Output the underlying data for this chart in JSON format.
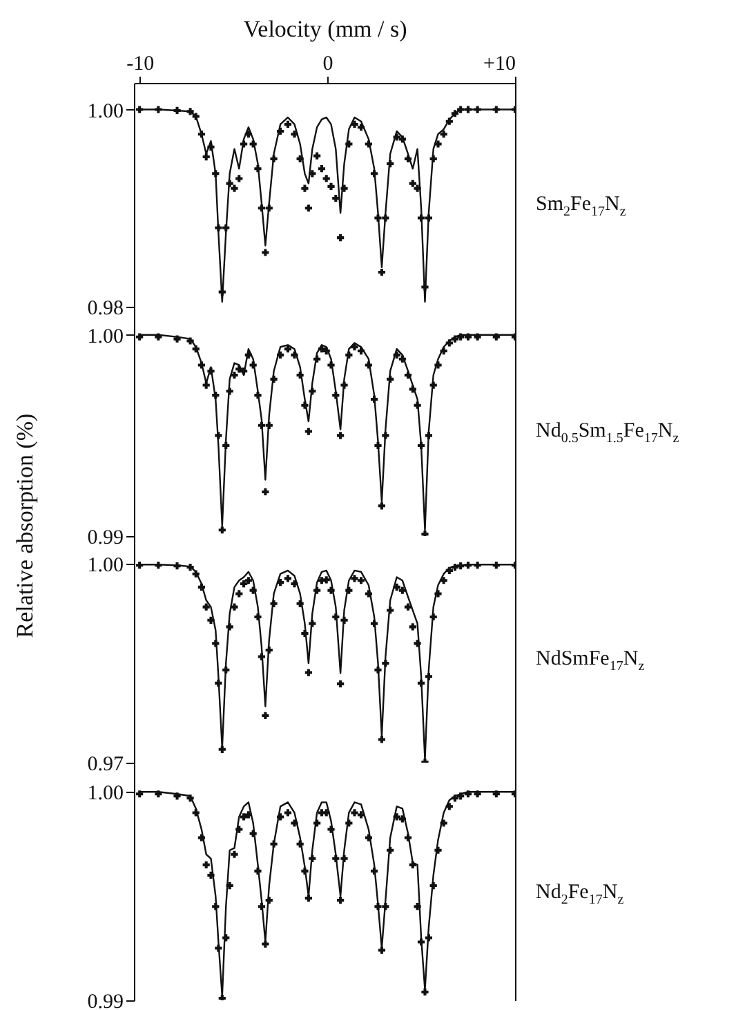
{
  "chart_data": [
    {
      "type": "scatter",
      "xlabel": "Velocity (mm / s)",
      "annotations": [
        "Sm$_{2}$Fe$_{17}$N$_{z}$"
      ],
      "xlim": [
        -10.3,
        10
      ],
      "xticks": [
        -10,
        0,
        {
          "value": 10,
          "label": "+10"
        }
      ],
      "ylim": [
        0.98,
        1.0027
      ],
      "yticks": [
        {
          "value": 1,
          "label": "1.00"
        },
        {
          "value": 0.98,
          "label": "0.98"
        }
      ],
      "x": [
        -10,
        -9,
        -8,
        -7.3,
        -7.0,
        -6.7,
        -6.45,
        -6.2,
        -5.95,
        -5.8,
        -5.6,
        -5.4,
        -5.2,
        -4.95,
        -4.7,
        -4.45,
        -4.2,
        -3.95,
        -3.7,
        -3.5,
        -3.3,
        -3.1,
        -2.85,
        -2.5,
        -2.1,
        -1.75,
        -1.45,
        -1.2,
        -1.0,
        -0.8,
        -0.55,
        -0.3,
        -0.05,
        0.2,
        0.45,
        0.7,
        0.9,
        1.15,
        1.45,
        1.8,
        2.2,
        2.5,
        2.7,
        2.9,
        3.1,
        3.35,
        3.7,
        4.0,
        4.3,
        4.55,
        4.8,
        5.0,
        5.2,
        5.4,
        5.65,
        5.9,
        6.2,
        6.5,
        6.8,
        7.1,
        7.5,
        8,
        9,
        10
      ],
      "series": [
        {
          "marker": "cross",
          "color": "#111111",
          "values": [
            1,
            1,
            0.9999,
            0.9998,
            0.9993,
            0.9975,
            0.9952,
            0.9962,
            0.9935,
            0.988,
            0.9815,
            0.988,
            0.9925,
            0.992,
            0.993,
            0.9965,
            0.9975,
            0.9965,
            0.994,
            0.99,
            0.9855,
            0.99,
            0.995,
            0.9978,
            0.9985,
            0.9975,
            0.995,
            0.992,
            0.99,
            0.9935,
            0.9953,
            0.994,
            0.993,
            0.9922,
            0.991,
            0.987,
            0.992,
            0.9965,
            0.9985,
            0.9982,
            0.9965,
            0.9935,
            0.989,
            0.9835,
            0.989,
            0.9945,
            0.9972,
            0.997,
            0.995,
            0.9925,
            0.992,
            0.989,
            0.982,
            0.989,
            0.995,
            0.9965,
            0.9975,
            0.9988,
            0.9996,
            1,
            1,
            1,
            1,
            1
          ]
        },
        {
          "type": "line",
          "marker": "none",
          "color": "#111111",
          "values": [
            1,
            1,
            0.9999,
            0.9998,
            0.9993,
            0.9975,
            0.9955,
            0.9968,
            0.9935,
            0.9875,
            0.9805,
            0.9875,
            0.9935,
            0.996,
            0.994,
            0.997,
            0.9982,
            0.997,
            0.9945,
            0.9905,
            0.9862,
            0.9905,
            0.9955,
            0.9985,
            0.9992,
            0.9985,
            0.9965,
            0.9935,
            0.9925,
            0.996,
            0.9982,
            0.999,
            0.9992,
            0.9985,
            0.996,
            0.9895,
            0.9945,
            0.998,
            0.9992,
            0.9988,
            0.997,
            0.994,
            0.9895,
            0.984,
            0.9895,
            0.9955,
            0.9978,
            0.9972,
            0.9955,
            0.994,
            0.996,
            0.99,
            0.9805,
            0.9895,
            0.996,
            0.9975,
            0.998,
            0.999,
            0.9996,
            1,
            1,
            1,
            1,
            1
          ]
        }
      ]
    },
    {
      "type": "scatter",
      "ylabel": "Relative absorption (%)",
      "annotations": [
        "Nd$_{0.5}$Sm$_{1.5}$Fe$_{17}$N$_{z}$"
      ],
      "tick_labels": "y",
      "xlim": [
        -10.3,
        10
      ],
      "ylim": [
        0.99,
        1.0014
      ],
      "yticks": [
        {
          "value": 1,
          "label": "1.00"
        },
        {
          "value": 0.99,
          "label": "0.99"
        }
      ],
      "x": [
        -10,
        -9,
        -8,
        -7.3,
        -7.0,
        -6.7,
        -6.45,
        -6.2,
        -5.95,
        -5.8,
        -5.6,
        -5.4,
        -5.2,
        -4.95,
        -4.7,
        -4.45,
        -4.2,
        -3.95,
        -3.7,
        -3.5,
        -3.3,
        -3.1,
        -2.85,
        -2.5,
        -2.1,
        -1.75,
        -1.45,
        -1.2,
        -1.0,
        -0.8,
        -0.55,
        -0.3,
        -0.05,
        0.2,
        0.45,
        0.7,
        0.9,
        1.15,
        1.45,
        1.8,
        2.2,
        2.5,
        2.7,
        2.9,
        3.1,
        3.35,
        3.7,
        4.0,
        4.3,
        4.55,
        4.8,
        5.0,
        5.2,
        5.4,
        5.65,
        5.9,
        6.2,
        6.5,
        6.8,
        7.1,
        7.5,
        8,
        9,
        10
      ],
      "series": [
        {
          "marker": "cross",
          "color": "#111111",
          "values": [
            0.9999,
            0.9999,
            0.9998,
            0.9997,
            0.9993,
            0.9985,
            0.9975,
            0.9982,
            0.997,
            0.995,
            0.9903,
            0.9945,
            0.9972,
            0.998,
            0.9983,
            0.9982,
            0.999,
            0.9985,
            0.997,
            0.9955,
            0.9922,
            0.9955,
            0.9978,
            0.999,
            0.9993,
            0.999,
            0.998,
            0.9965,
            0.9952,
            0.9972,
            0.9988,
            0.9993,
            0.9992,
            0.9985,
            0.997,
            0.995,
            0.9975,
            0.999,
            0.9994,
            0.9992,
            0.9985,
            0.9968,
            0.9945,
            0.9915,
            0.995,
            0.9978,
            0.999,
            0.9988,
            0.998,
            0.9973,
            0.9965,
            0.9945,
            0.9901,
            0.995,
            0.9975,
            0.9985,
            0.9992,
            0.9996,
            0.9998,
            0.9999,
            0.9999,
            0.9999,
            0.9999,
            0.9999
          ]
        },
        {
          "type": "line",
          "marker": "none",
          "color": "#111111",
          "values": [
            1,
            1,
            0.9999,
            0.9998,
            0.9994,
            0.9986,
            0.9976,
            0.9984,
            0.9968,
            0.9945,
            0.9905,
            0.9948,
            0.9978,
            0.9986,
            0.9985,
            0.998,
            0.9993,
            0.9988,
            0.9972,
            0.9958,
            0.9928,
            0.996,
            0.9982,
            0.9994,
            0.9995,
            0.9993,
            0.9984,
            0.9968,
            0.9957,
            0.9976,
            0.9991,
            0.9995,
            0.9994,
            0.9988,
            0.9972,
            0.9953,
            0.9978,
            0.9993,
            0.9996,
            0.9994,
            0.9988,
            0.997,
            0.9947,
            0.9917,
            0.9953,
            0.9982,
            0.9993,
            0.999,
            0.9982,
            0.9975,
            0.9968,
            0.9945,
            0.9903,
            0.9952,
            0.998,
            0.9988,
            0.9994,
            0.9997,
            0.9999,
            1,
            1,
            1,
            1,
            1
          ]
        }
      ]
    },
    {
      "type": "scatter",
      "annotations": [
        "NdSmFe$_{17}$N$_{z}$"
      ],
      "tick_labels": "y",
      "xlim": [
        -10.3,
        10
      ],
      "ylim": [
        0.97,
        1.0042
      ],
      "yticks": [
        {
          "value": 1,
          "label": "1.00"
        },
        {
          "value": 0.97,
          "label": "0.97"
        }
      ],
      "x": [
        -10,
        -9,
        -8,
        -7.3,
        -7.0,
        -6.7,
        -6.45,
        -6.2,
        -5.95,
        -5.8,
        -5.6,
        -5.4,
        -5.2,
        -4.95,
        -4.7,
        -4.45,
        -4.2,
        -3.95,
        -3.7,
        -3.5,
        -3.3,
        -3.1,
        -2.85,
        -2.5,
        -2.1,
        -1.75,
        -1.45,
        -1.2,
        -1.0,
        -0.8,
        -0.55,
        -0.3,
        -0.05,
        0.2,
        0.45,
        0.7,
        0.9,
        1.15,
        1.45,
        1.8,
        2.2,
        2.5,
        2.7,
        2.9,
        3.1,
        3.35,
        3.7,
        4.0,
        4.3,
        4.55,
        4.8,
        5.0,
        5.2,
        5.4,
        5.65,
        5.9,
        6.2,
        6.5,
        6.8,
        7.1,
        7.5,
        8,
        9,
        10
      ],
      "series": [
        {
          "marker": "cross",
          "color": "#111111",
          "values": [
            0.9998,
            0.9998,
            0.9997,
            0.9995,
            0.9985,
            0.9965,
            0.9935,
            0.9915,
            0.988,
            0.982,
            0.972,
            0.984,
            0.9905,
            0.9935,
            0.9955,
            0.997,
            0.9975,
            0.996,
            0.992,
            0.986,
            0.9771,
            0.987,
            0.994,
            0.9972,
            0.9978,
            0.997,
            0.994,
            0.9895,
            0.9836,
            0.991,
            0.996,
            0.9975,
            0.9976,
            0.996,
            0.992,
            0.9819,
            0.9915,
            0.996,
            0.9978,
            0.9975,
            0.9955,
            0.991,
            0.984,
            0.9735,
            0.985,
            0.993,
            0.9965,
            0.996,
            0.9935,
            0.9905,
            0.988,
            0.982,
            0.9701,
            0.983,
            0.992,
            0.9955,
            0.9975,
            0.999,
            0.9995,
            0.9997,
            0.9998,
            0.9998,
            0.9998,
            0.9998
          ]
        },
        {
          "type": "line",
          "marker": "none",
          "color": "#111111",
          "values": [
            0.9999,
            0.9999,
            0.9998,
            0.9996,
            0.9988,
            0.997,
            0.9945,
            0.9935,
            0.99,
            0.983,
            0.9722,
            0.985,
            0.9925,
            0.9965,
            0.9975,
            0.998,
            0.9988,
            0.9975,
            0.9935,
            0.9875,
            0.9785,
            0.9885,
            0.9955,
            0.9985,
            0.999,
            0.9982,
            0.9955,
            0.991,
            0.985,
            0.9925,
            0.9972,
            0.9988,
            0.999,
            0.9975,
            0.9935,
            0.9835,
            0.993,
            0.9975,
            0.999,
            0.9988,
            0.9968,
            0.992,
            0.985,
            0.974,
            0.986,
            0.9945,
            0.998,
            0.9975,
            0.995,
            0.993,
            0.991,
            0.983,
            0.9705,
            0.984,
            0.9935,
            0.9968,
            0.9985,
            0.9994,
            0.9997,
            0.9998,
            0.9999,
            0.9999,
            0.9999,
            0.9999
          ]
        }
      ]
    },
    {
      "type": "scatter",
      "annotations": [
        "Nd$_{2}$Fe$_{17}$N$_{z}$"
      ],
      "tick_labels": "y",
      "xlim": [
        -10.3,
        10
      ],
      "ylim": [
        0.99,
        1.0014
      ],
      "yticks": [
        {
          "value": 1,
          "label": "1.00"
        },
        {
          "value": 0.99,
          "label": "0.99"
        }
      ],
      "x": [
        -10,
        -9,
        -8,
        -7.3,
        -7.0,
        -6.7,
        -6.45,
        -6.2,
        -5.95,
        -5.8,
        -5.6,
        -5.4,
        -5.2,
        -4.95,
        -4.7,
        -4.45,
        -4.2,
        -3.95,
        -3.7,
        -3.5,
        -3.3,
        -3.1,
        -2.85,
        -2.5,
        -2.1,
        -1.75,
        -1.45,
        -1.2,
        -1.0,
        -0.8,
        -0.55,
        -0.3,
        -0.05,
        0.2,
        0.45,
        0.7,
        0.9,
        1.15,
        1.45,
        1.8,
        2.2,
        2.5,
        2.7,
        2.9,
        3.1,
        3.35,
        3.7,
        4.0,
        4.3,
        4.55,
        4.8,
        5.0,
        5.2,
        5.4,
        5.65,
        5.9,
        6.2,
        6.5,
        6.8,
        7.1,
        7.5,
        8,
        9,
        10
      ],
      "series": [
        {
          "marker": "cross",
          "color": "#111111",
          "values": [
            0.9999,
            0.9999,
            0.9998,
            0.9997,
            0.999,
            0.9978,
            0.9965,
            0.996,
            0.9945,
            0.9925,
            0.9901,
            0.993,
            0.9955,
            0.997,
            0.9982,
            0.9988,
            0.9989,
            0.998,
            0.9962,
            0.9945,
            0.9927,
            0.9948,
            0.9975,
            0.9988,
            0.999,
            0.9985,
            0.9975,
            0.9962,
            0.9949,
            0.9968,
            0.9985,
            0.999,
            0.999,
            0.9982,
            0.9968,
            0.9948,
            0.9968,
            0.9985,
            0.999,
            0.9989,
            0.9978,
            0.9962,
            0.9945,
            0.9924,
            0.9945,
            0.9972,
            0.9988,
            0.9987,
            0.9978,
            0.9965,
            0.9945,
            0.9928,
            0.9904,
            0.993,
            0.9955,
            0.9972,
            0.9985,
            0.9993,
            0.9997,
            0.9998,
            0.9999,
            0.9999,
            0.9999,
            0.9999
          ]
        },
        {
          "type": "line",
          "marker": "none",
          "color": "#111111",
          "values": [
            1,
            1,
            0.9999,
            0.9998,
            0.9992,
            0.9982,
            0.997,
            0.9968,
            0.995,
            0.9928,
            0.9902,
            0.9945,
            0.9972,
            0.9973,
            0.9988,
            0.9993,
            0.9995,
            0.9985,
            0.9965,
            0.9948,
            0.9928,
            0.9955,
            0.9975,
            0.9993,
            0.9995,
            0.999,
            0.9978,
            0.9964,
            0.995,
            0.9972,
            0.999,
            0.9995,
            0.9995,
            0.9986,
            0.997,
            0.995,
            0.9972,
            0.999,
            0.9995,
            0.9994,
            0.9982,
            0.9965,
            0.9946,
            0.9925,
            0.9948,
            0.9978,
            0.9993,
            0.9992,
            0.998,
            0.9966,
            0.9965,
            0.993,
            0.9905,
            0.9935,
            0.996,
            0.9977,
            0.999,
            0.9996,
            0.9998,
            0.9999,
            1,
            1,
            1,
            1
          ]
        }
      ]
    }
  ]
}
